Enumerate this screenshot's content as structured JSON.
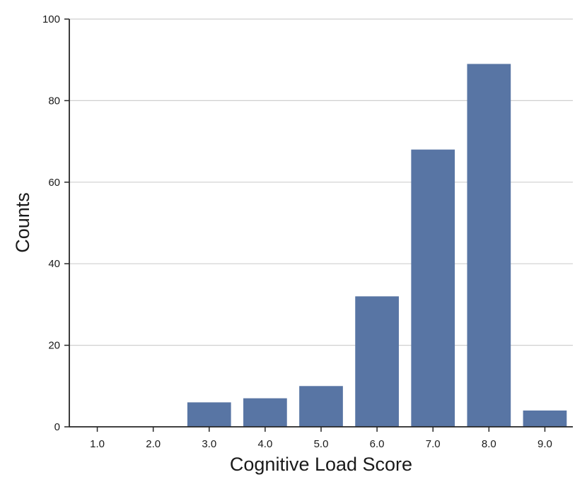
{
  "chart_data": {
    "type": "bar",
    "title": "",
    "xlabel": "Cognitive Load Score",
    "ylabel": "Counts",
    "categories": [
      "1.0",
      "2.0",
      "3.0",
      "4.0",
      "5.0",
      "6.0",
      "7.0",
      "8.0",
      "9.0"
    ],
    "values": [
      0,
      0,
      6,
      7,
      10,
      32,
      68,
      89,
      4
    ],
    "ylim": [
      0,
      100
    ],
    "yticks": [
      "0",
      "20",
      "40",
      "60",
      "80",
      "100"
    ],
    "grid": "horizontal",
    "colors": {
      "bar": "#5875a4"
    }
  }
}
